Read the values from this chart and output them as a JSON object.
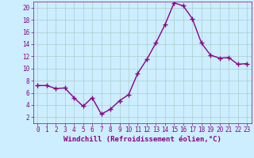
{
  "x": [
    0,
    1,
    2,
    3,
    4,
    5,
    6,
    7,
    8,
    9,
    10,
    11,
    12,
    13,
    14,
    15,
    16,
    17,
    18,
    19,
    20,
    21,
    22,
    23
  ],
  "y": [
    7.2,
    7.2,
    6.7,
    6.8,
    5.2,
    3.8,
    5.2,
    2.5,
    3.3,
    4.7,
    5.7,
    9.2,
    11.5,
    14.2,
    17.2,
    20.8,
    20.3,
    18.2,
    14.2,
    12.2,
    11.7,
    11.8,
    10.7,
    10.8
  ],
  "line_color": "#880088",
  "marker": "+",
  "marker_size": 4,
  "linewidth": 1.0,
  "bg_color": "#cceeff",
  "grid_color": "#aacccc",
  "xlabel": "Windchill (Refroidissement éolien,°C)",
  "xlabel_color": "#880088",
  "xlabel_fontsize": 6.5,
  "tick_color": "#880088",
  "tick_fontsize": 5.5,
  "xlim": [
    -0.5,
    23.5
  ],
  "ylim": [
    1,
    21
  ],
  "yticks": [
    2,
    4,
    6,
    8,
    10,
    12,
    14,
    16,
    18,
    20
  ],
  "xticks": [
    0,
    1,
    2,
    3,
    4,
    5,
    6,
    7,
    8,
    9,
    10,
    11,
    12,
    13,
    14,
    15,
    16,
    17,
    18,
    19,
    20,
    21,
    22,
    23
  ]
}
